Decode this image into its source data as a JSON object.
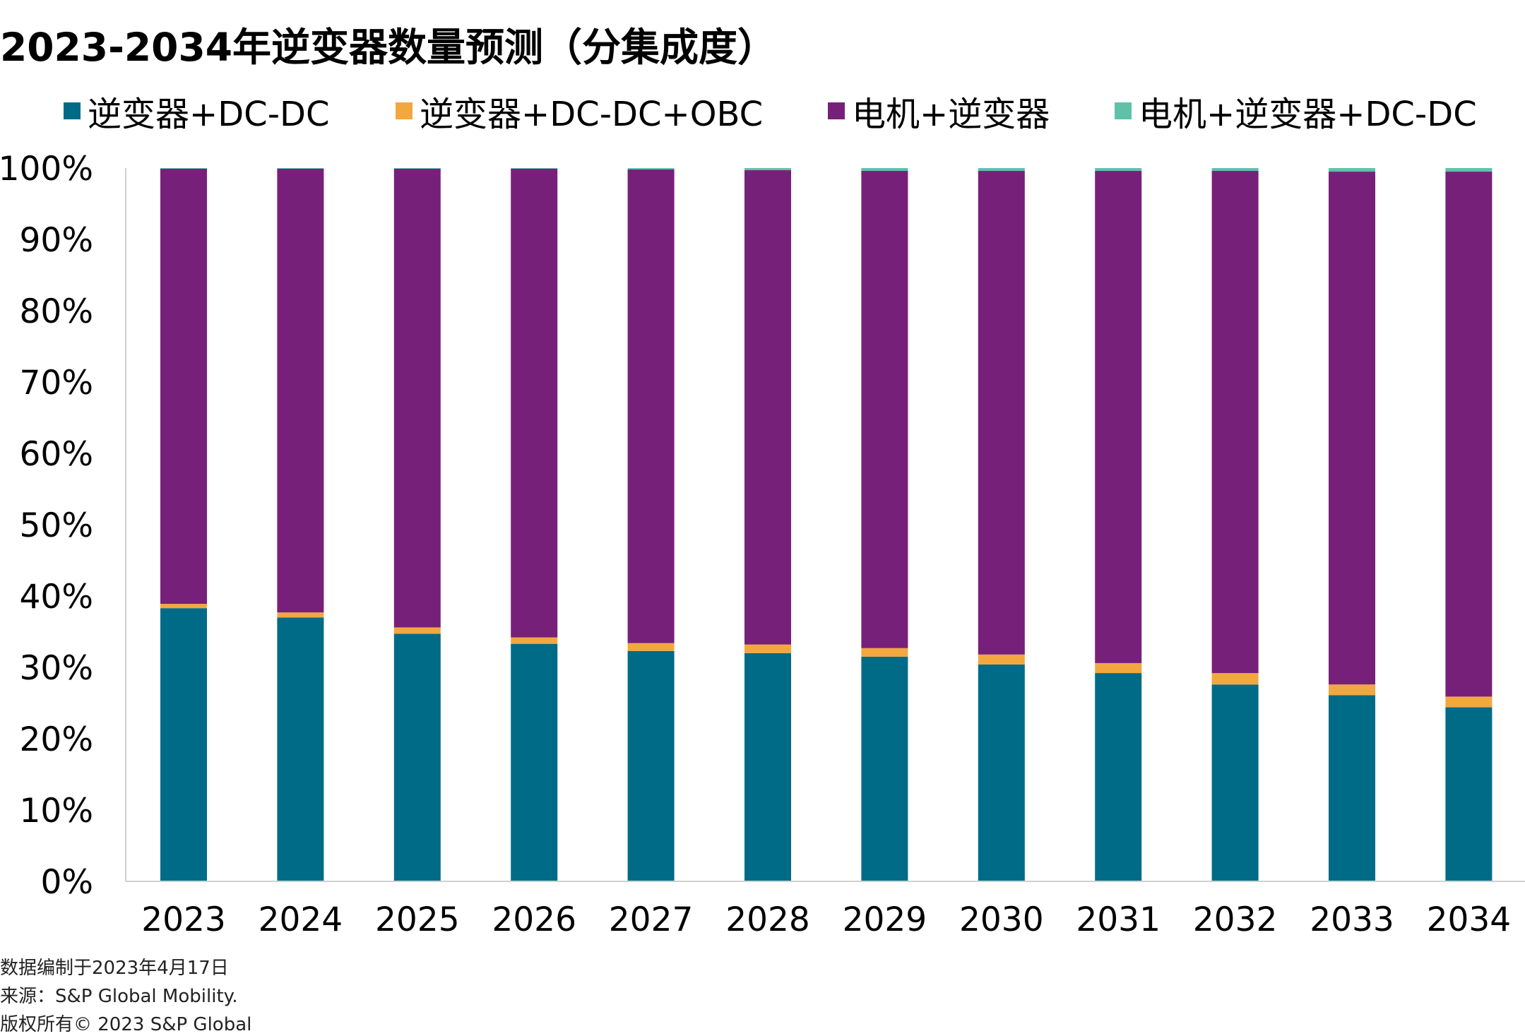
{
  "title": "2023-2034年逆变器数量预测（分集成度）",
  "footnotes": {
    "date_note": "数据编制于2023年4月17日",
    "source": "来源：S&P Global Mobility.",
    "copyright": "版权所有© 2023 S&P Global"
  },
  "chart_data": {
    "type": "bar",
    "stacked": true,
    "categories": [
      "2023",
      "2024",
      "2025",
      "2026",
      "2027",
      "2028",
      "2029",
      "2030",
      "2031",
      "2032",
      "2033",
      "2034"
    ],
    "series": [
      {
        "name": "逆变器+DC-DC",
        "color": "#006B87",
        "values": [
          38.3,
          37.0,
          34.7,
          33.3,
          32.3,
          32.0,
          31.5,
          30.4,
          29.2,
          27.6,
          26.1,
          24.4
        ]
      },
      {
        "name": "逆变器+DC-DC+OBC",
        "color": "#F2A83E",
        "values": [
          0.6,
          0.7,
          0.9,
          0.9,
          1.1,
          1.2,
          1.2,
          1.4,
          1.4,
          1.6,
          1.5,
          1.5
        ]
      },
      {
        "name": "电机+逆变器",
        "color": "#772079",
        "values": [
          61.0,
          62.2,
          64.3,
          65.7,
          66.4,
          66.5,
          66.9,
          67.8,
          69.0,
          70.4,
          71.9,
          73.6
        ]
      },
      {
        "name": "电机+逆变器+DC-DC",
        "color": "#5FC1A8",
        "values": [
          0.1,
          0.1,
          0.1,
          0.1,
          0.2,
          0.3,
          0.4,
          0.4,
          0.4,
          0.4,
          0.5,
          0.5
        ]
      }
    ],
    "ylim": [
      0,
      100
    ],
    "yticks": [
      "0%",
      "10%",
      "20%",
      "30%",
      "40%",
      "50%",
      "60%",
      "70%",
      "80%",
      "90%",
      "100%"
    ],
    "legend_position": "top",
    "grid": false
  }
}
